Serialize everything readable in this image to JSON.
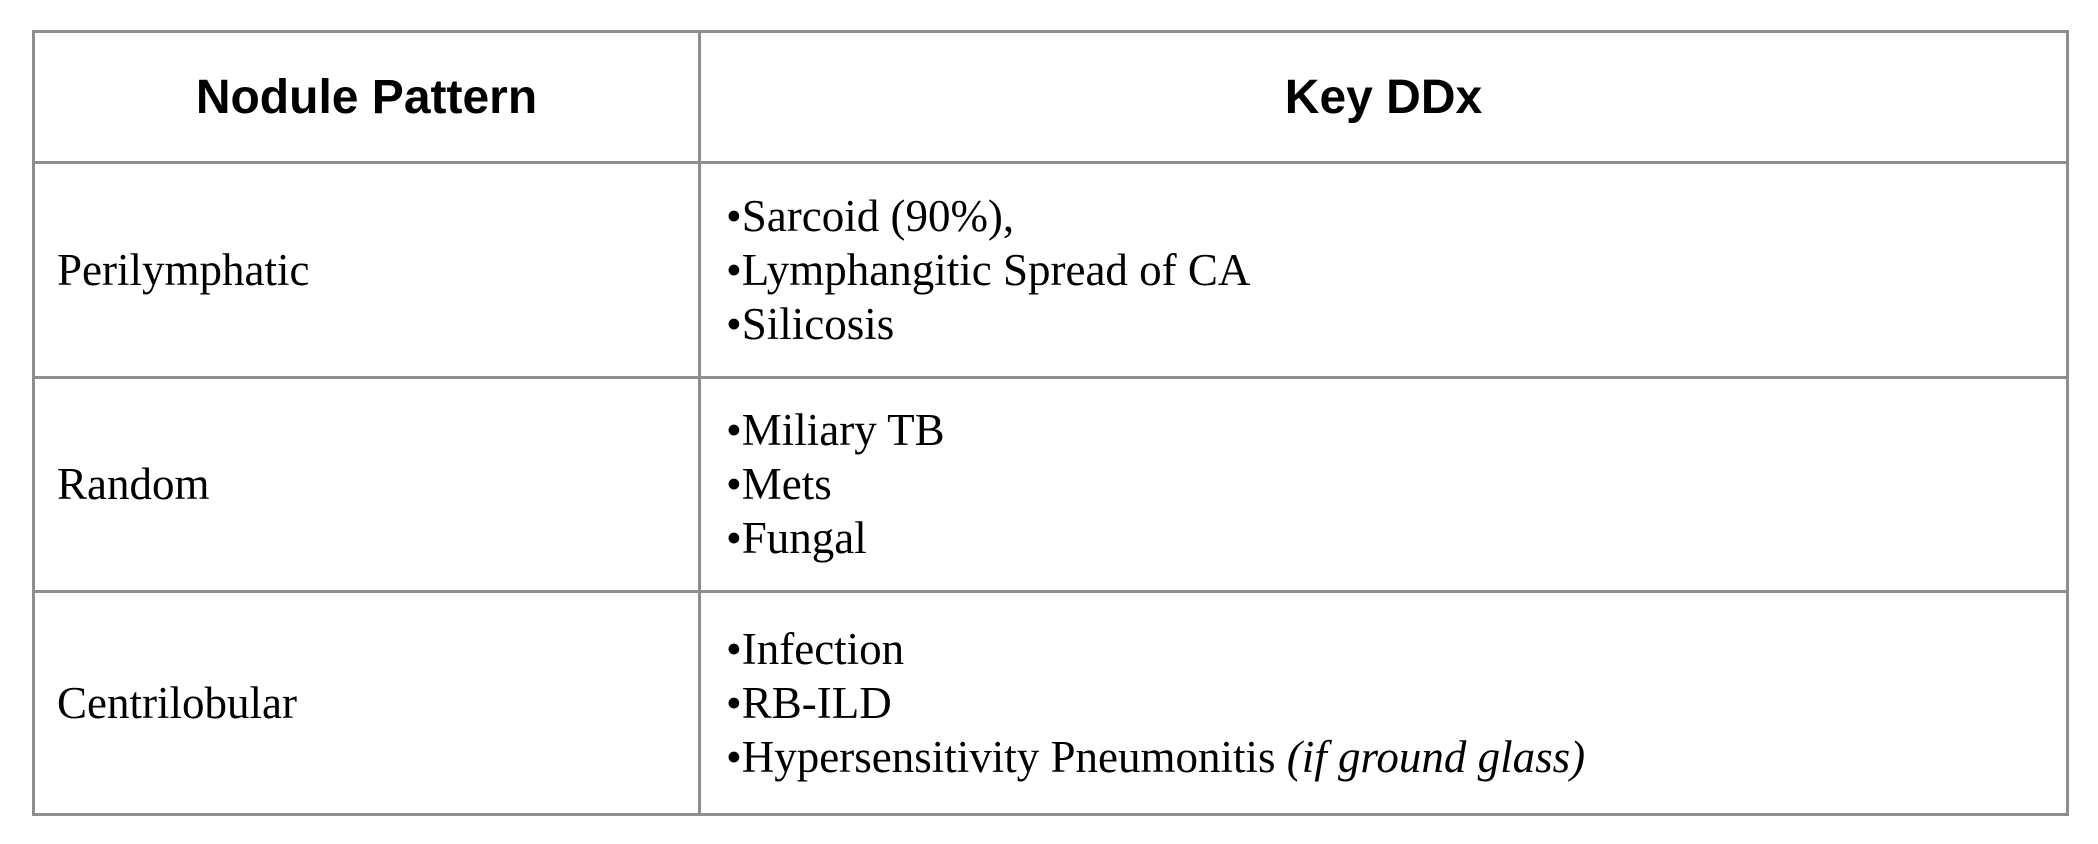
{
  "table": {
    "headers": {
      "pattern": "Nodule Pattern",
      "ddx": "Key DDx"
    },
    "rows": [
      {
        "pattern": "Perilymphatic",
        "ddx": [
          {
            "text": "•Sarcoid (90%),",
            "qualifier": ""
          },
          {
            "text": "•Lymphangitic Spread of CA",
            "qualifier": ""
          },
          {
            "text": "•Silicosis",
            "qualifier": ""
          }
        ]
      },
      {
        "pattern": "Random",
        "ddx": [
          {
            "text": "•Miliary TB",
            "qualifier": ""
          },
          {
            "text": "•Mets",
            "qualifier": ""
          },
          {
            "text": "•Fungal",
            "qualifier": ""
          }
        ]
      },
      {
        "pattern": "Centrilobular",
        "ddx": [
          {
            "text": "•Infection",
            "qualifier": ""
          },
          {
            "text": "•RB-ILD",
            "qualifier": ""
          },
          {
            "text": "•Hypersensitivity Pneumonitis ",
            "qualifier": "(if ground glass)"
          }
        ]
      }
    ]
  }
}
